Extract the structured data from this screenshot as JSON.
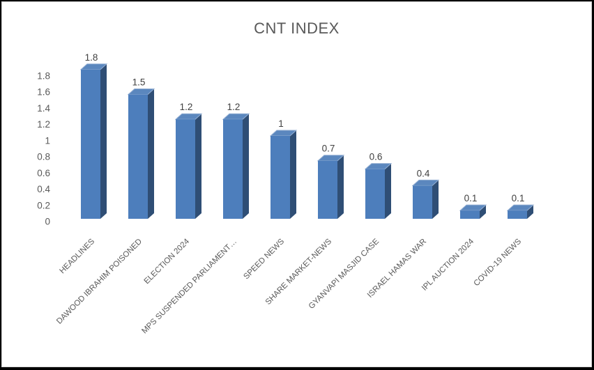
{
  "chart_data": {
    "type": "bar",
    "style": "3d",
    "title": "CNT INDEX",
    "categories": [
      "HEADLINES",
      "DAWOOD IBRAHIM POISONED",
      "ELECTION 2024",
      "MPS SUSPENDED PARLIAMENT…",
      "SPEED NEWS",
      "SHARE MARKET-NEWS",
      "GYANVAPI MASJID CASE",
      "ISRAEL HAMAS WAR",
      "IPL AUCTION 2024",
      "COVID-19 NEWS"
    ],
    "values": [
      1.8,
      1.5,
      1.2,
      1.2,
      1,
      0.7,
      0.6,
      0.4,
      0.1,
      0.1
    ],
    "data_labels": [
      "1.8",
      "1.5",
      "1.2",
      "1.2",
      "1",
      "0.7",
      "0.6",
      "0.4",
      "0.1",
      "0.1"
    ],
    "y_ticks": [
      "1.8",
      "1.6",
      "1.4",
      "1.2",
      "1",
      "0.8",
      "0.6",
      "0.4",
      "0.2",
      "0"
    ],
    "ylim": [
      0,
      1.8
    ],
    "xlabel": "",
    "ylabel": "",
    "grid": false,
    "legend": "none",
    "colors": {
      "bar_front": "#4D7EBC",
      "bar_top": "#5B87BE",
      "bar_side": "#2F4E75",
      "bar_bevel": "#94AFD3",
      "axis_text": "#595959",
      "value_text": "#3F3F3F",
      "title_text": "#595959",
      "chart_border": "#d6d6d6",
      "frame": "#000000",
      "background": "#ffffff"
    }
  }
}
